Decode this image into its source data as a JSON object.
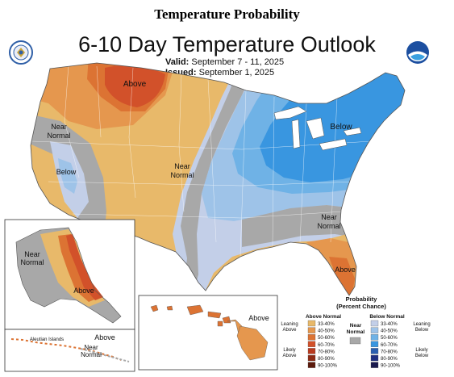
{
  "page_title": "Temperature Probability",
  "map": {
    "title": "6-10 Day Temperature Outlook",
    "valid_label": "Valid:",
    "valid_value": "September 7 - 11, 2025",
    "issued_label": "Issued:",
    "issued_value": "September 1, 2025"
  },
  "logos": {
    "left": "noaa-department-of-commerce-seal",
    "right": "noaa-emblem"
  },
  "labels": {
    "above_northwest": "Above",
    "near_normal_west_1": "Near",
    "near_normal_west_2": "Normal",
    "below_west": "Below",
    "near_normal_central_1": "Near",
    "near_normal_central_2": "Normal",
    "below_northeast": "Below",
    "near_normal_southeast_1": "Near",
    "near_normal_southeast_2": "Normal",
    "above_florida": "Above",
    "alaska_near_1": "Near",
    "alaska_near_2": "Normal",
    "alaska_above": "Above",
    "aleutian_islands": "Aleutian Islands",
    "aleutian_above": "Above",
    "aleutian_near_1": "Near",
    "aleutian_near_2": "Normal",
    "hawaii_above": "Above"
  },
  "legend": {
    "title_1": "Probability",
    "title_2": "(Percent Chance)",
    "above_header": "Above Normal",
    "below_header": "Below Normal",
    "near_header_1": "Near",
    "near_header_2": "Normal",
    "leaning_above_1": "Leaning",
    "leaning_above_2": "Above",
    "likely_above_1": "Likely",
    "likely_above_2": "Above",
    "leaning_below_1": "Leaning",
    "leaning_below_2": "Below",
    "likely_below_1": "Likely",
    "likely_below_2": "Below",
    "above_bins": [
      {
        "label": "33-40%",
        "color": "#e8b96a"
      },
      {
        "label": "40-50%",
        "color": "#e5974e"
      },
      {
        "label": "50-60%",
        "color": "#dc7333"
      },
      {
        "label": "60-70%",
        "color": "#d2512a"
      },
      {
        "label": "70-80%",
        "color": "#b93a1f"
      },
      {
        "label": "80-90%",
        "color": "#8e2a14"
      },
      {
        "label": "90-100%",
        "color": "#5c1a0c"
      }
    ],
    "below_bins": [
      {
        "label": "33-40%",
        "color": "#c3cfe8"
      },
      {
        "label": "40-50%",
        "color": "#9ec3e8"
      },
      {
        "label": "50-60%",
        "color": "#6fb2e6"
      },
      {
        "label": "60-70%",
        "color": "#3996e0"
      },
      {
        "label": "70-80%",
        "color": "#2a5fb0"
      },
      {
        "label": "80-90%",
        "color": "#1e2f82"
      },
      {
        "label": "90-100%",
        "color": "#1a1a4e"
      }
    ],
    "near_color": "#a8a8a8"
  }
}
